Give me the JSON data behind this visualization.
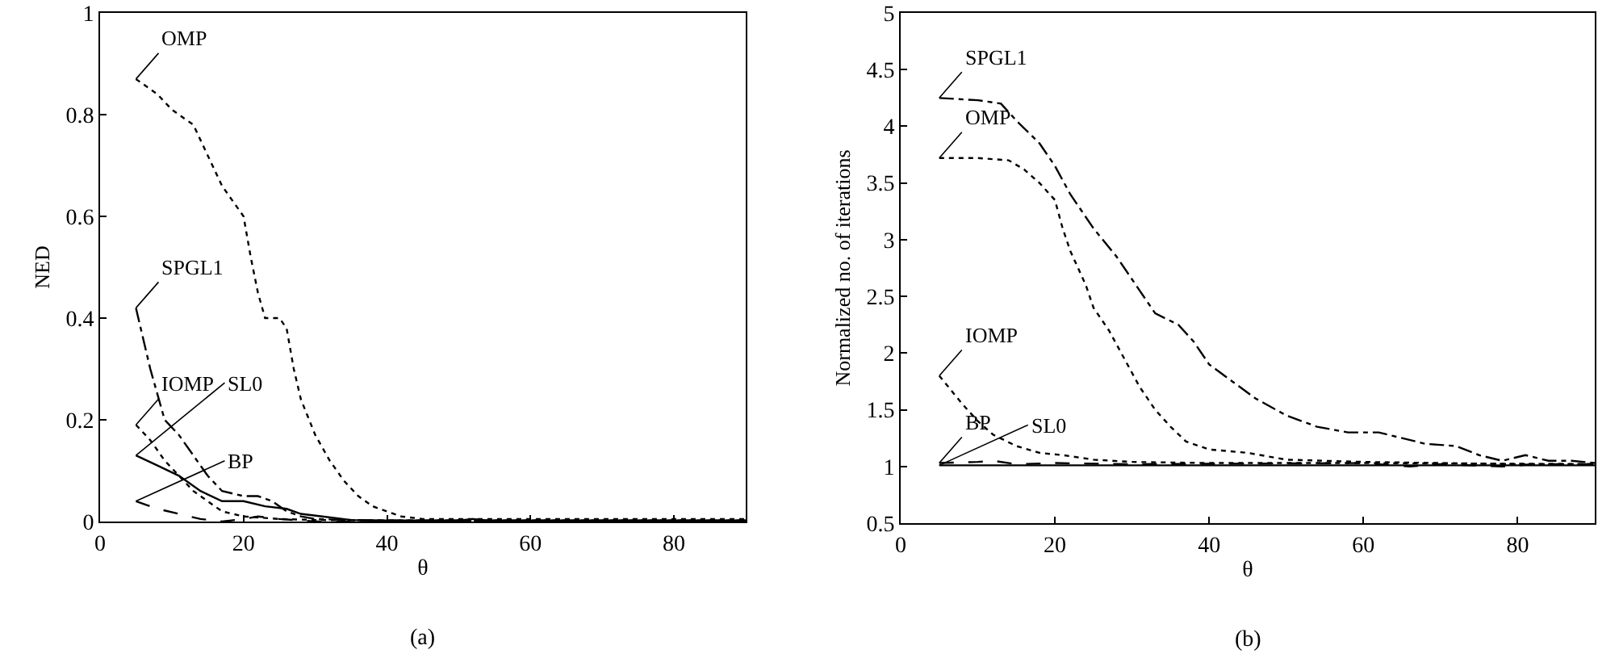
{
  "chart_data": [
    {
      "type": "line",
      "xlabel": "θ",
      "ylabel": "NED",
      "annotations": [
        "(a)"
      ],
      "xlim": [
        0,
        90
      ],
      "ylim": [
        0,
        1
      ],
      "xticks": [
        0,
        20,
        40,
        60,
        80
      ],
      "yticks": [
        0,
        0.2,
        0.4,
        0.6,
        0.8,
        1
      ],
      "grid": false,
      "legend": false,
      "marker": "none",
      "series": [
        {
          "name": "OMP",
          "color": "#000000",
          "line_style": "dotted",
          "x": [
            5,
            8,
            10,
            13,
            15,
            17,
            19,
            20,
            21,
            22,
            23,
            25,
            26,
            27,
            28,
            30,
            32,
            34,
            36,
            38,
            40,
            42,
            45,
            50,
            60,
            70,
            80,
            90
          ],
          "values": [
            0.87,
            0.84,
            0.81,
            0.78,
            0.72,
            0.66,
            0.62,
            0.6,
            0.52,
            0.45,
            0.4,
            0.4,
            0.38,
            0.3,
            0.24,
            0.17,
            0.12,
            0.08,
            0.05,
            0.03,
            0.02,
            0.01,
            0.005,
            0.005,
            0.005,
            0.005,
            0.005,
            0.005
          ]
        },
        {
          "name": "SPGL1",
          "color": "#000000",
          "line_style": "dashdot",
          "x": [
            5,
            7,
            9,
            11,
            13,
            15,
            17,
            20,
            22,
            24,
            26,
            28,
            30,
            35,
            40,
            60,
            90
          ],
          "values": [
            0.42,
            0.3,
            0.2,
            0.17,
            0.13,
            0.09,
            0.06,
            0.05,
            0.05,
            0.04,
            0.02,
            0.01,
            0.005,
            0.003,
            0.002,
            0.002,
            0.002
          ]
        },
        {
          "name": "IOMP",
          "color": "#000000",
          "line_style": "dotted",
          "x": [
            5,
            7,
            9,
            11,
            13,
            15,
            17,
            20,
            25,
            30,
            40,
            90
          ],
          "values": [
            0.19,
            0.16,
            0.12,
            0.09,
            0.06,
            0.04,
            0.02,
            0.01,
            0.005,
            0.003,
            0.002,
            0.002
          ]
        },
        {
          "name": "SL0",
          "color": "#000000",
          "line_style": "solid",
          "x": [
            5,
            8,
            11,
            14,
            17,
            20,
            23,
            26,
            28,
            31,
            35,
            40,
            50,
            52,
            54,
            90
          ],
          "values": [
            0.13,
            0.11,
            0.09,
            0.06,
            0.04,
            0.04,
            0.03,
            0.025,
            0.015,
            0.01,
            0.003,
            0.002,
            0.002,
            0.005,
            0.002,
            0.002
          ]
        },
        {
          "name": "BP",
          "color": "#000000",
          "line_style": "dashed",
          "x": [
            5,
            8,
            11,
            14,
            17,
            20,
            22,
            25,
            30,
            90
          ],
          "values": [
            0.04,
            0.025,
            0.015,
            0.005,
            0,
            0.005,
            0.01,
            0.005,
            0,
            0
          ]
        }
      ]
    },
    {
      "type": "line",
      "xlabel": "θ",
      "ylabel": "Normalized no. of iterations",
      "annotations": [
        "(b)"
      ],
      "xlim": [
        0,
        90
      ],
      "ylim": [
        0.5,
        5
      ],
      "xticks": [
        0,
        20,
        40,
        60,
        80
      ],
      "yticks": [
        0.5,
        1,
        1.5,
        2,
        2.5,
        3,
        3.5,
        4,
        4.5,
        5
      ],
      "grid": false,
      "legend": false,
      "marker": "none",
      "series": [
        {
          "name": "SPGL1",
          "color": "#000000",
          "line_style": "dashdot",
          "x": [
            5,
            10,
            13,
            15,
            18,
            20,
            22,
            25,
            28,
            31,
            33,
            36,
            38,
            40,
            43,
            46,
            50,
            54,
            58,
            62,
            65,
            68,
            72,
            75,
            78,
            81,
            84,
            87,
            90
          ],
          "values": [
            4.25,
            4.23,
            4.2,
            4.05,
            3.85,
            3.65,
            3.4,
            3.1,
            2.85,
            2.55,
            2.35,
            2.25,
            2.1,
            1.9,
            1.75,
            1.6,
            1.45,
            1.35,
            1.3,
            1.3,
            1.25,
            1.2,
            1.18,
            1.1,
            1.05,
            1.1,
            1.05,
            1.05,
            1.03
          ]
        },
        {
          "name": "OMP",
          "color": "#000000",
          "line_style": "dotted",
          "x": [
            5,
            10,
            14,
            16,
            18,
            20,
            21,
            22,
            24,
            25,
            27,
            29,
            31,
            33,
            35,
            37,
            40,
            45,
            50,
            55,
            60,
            70,
            80,
            90
          ],
          "values": [
            3.72,
            3.72,
            3.7,
            3.62,
            3.5,
            3.35,
            3.1,
            2.9,
            2.6,
            2.4,
            2.2,
            1.95,
            1.7,
            1.5,
            1.35,
            1.22,
            1.15,
            1.12,
            1.06,
            1.05,
            1.04,
            1.03,
            1.02,
            1.02
          ]
        },
        {
          "name": "IOMP",
          "color": "#000000",
          "line_style": "dotted",
          "x": [
            5,
            8,
            10,
            12,
            15,
            18,
            21,
            25,
            30,
            40,
            60,
            90
          ],
          "values": [
            1.8,
            1.55,
            1.4,
            1.28,
            1.18,
            1.12,
            1.1,
            1.06,
            1.04,
            1.03,
            1.03,
            1.02
          ]
        },
        {
          "name": "BP",
          "color": "#000000",
          "line_style": "dashed",
          "x": [
            5,
            10,
            12,
            15,
            20,
            30,
            60,
            66,
            70,
            78,
            82,
            90
          ],
          "values": [
            1.03,
            1.04,
            1.05,
            1.02,
            1.03,
            1.02,
            1.03,
            1,
            1.02,
            1,
            1.02,
            1.02
          ]
        },
        {
          "name": "SL0",
          "color": "#000000",
          "line_style": "solid",
          "x": [
            5,
            30,
            60,
            90
          ],
          "values": [
            1.01,
            1.01,
            1.01,
            1.01
          ]
        }
      ]
    }
  ]
}
